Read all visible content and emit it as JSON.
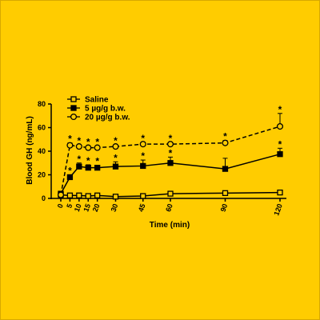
{
  "chart_data": {
    "type": "line",
    "xlabel": "Time (min)",
    "ylabel": "Blood GH (ng/mL)",
    "x": [
      0,
      5,
      10,
      15,
      20,
      30,
      45,
      60,
      90,
      120
    ],
    "x_ticks": [
      "0",
      "5",
      "10",
      "15",
      "20",
      "30",
      "45",
      "60",
      "90",
      "120"
    ],
    "y_ticks": [
      "0",
      "20",
      "40",
      "60",
      "80"
    ],
    "ylim": [
      0,
      80
    ],
    "xlim": [
      0,
      120
    ],
    "legend_position": "top-left",
    "significance_marker": "*",
    "series": [
      {
        "name": "Saline",
        "marker": "open-square",
        "line_style": "solid",
        "values": [
          3,
          2.5,
          2.5,
          2,
          2.5,
          1.5,
          2,
          4,
          4.5,
          5
        ],
        "errors": [
          0.5,
          0.5,
          0.5,
          0.5,
          0.8,
          0.5,
          0.5,
          0.8,
          0.8,
          1
        ],
        "significant": [
          false,
          false,
          false,
          false,
          false,
          false,
          false,
          false,
          false,
          false
        ]
      },
      {
        "name": "5 µg/g b.w.",
        "marker": "filled-square",
        "line_style": "solid",
        "values": [
          4,
          18,
          27,
          26,
          26,
          27,
          27.5,
          30,
          25,
          37.5
        ],
        "errors": [
          0.5,
          2,
          3,
          2.5,
          2,
          4,
          5,
          5,
          9,
          5
        ],
        "significant": [
          false,
          true,
          true,
          true,
          true,
          true,
          true,
          true,
          false,
          true
        ]
      },
      {
        "name": "20 µg/g b.w.",
        "marker": "open-circle",
        "line_style": "dashed",
        "values": [
          3,
          45,
          44,
          43,
          43,
          44,
          46,
          46,
          47,
          61
        ],
        "errors": [
          0.5,
          2,
          1.5,
          1.5,
          1.5,
          1.5,
          1.5,
          1.5,
          2,
          11
        ],
        "significant": [
          false,
          true,
          true,
          true,
          true,
          true,
          true,
          true,
          true,
          true
        ]
      }
    ]
  }
}
